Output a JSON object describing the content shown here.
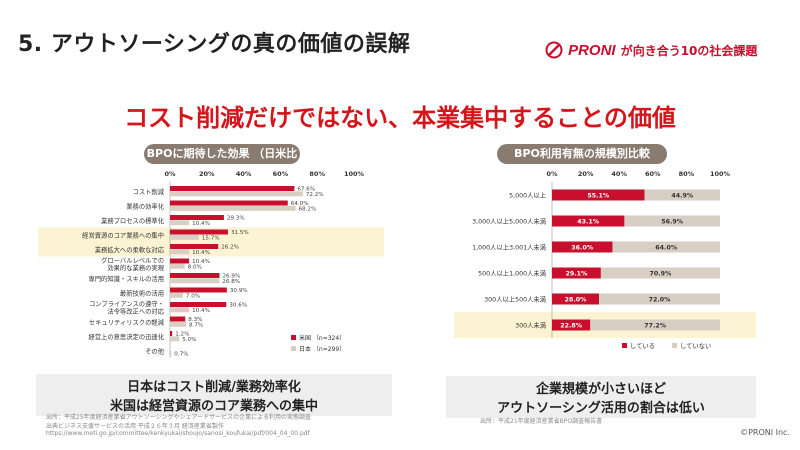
{
  "header": {
    "title": "5. アウトソーシングの真の価値の誤解",
    "brand_name": "PRONI",
    "brand_tagline": "が向き合う10の社会課題"
  },
  "headline": "コスト削減だけではない、本業集中することの価値",
  "left_panel": {
    "title": "BPOに期待した効果 （日米比較）",
    "note_line1": "日本はコスト削減/業務効率化",
    "note_line2": "米国は経営資源のコア業務への集中",
    "source_line1": "出所：平成25年度経済産業省アウトソーシングやシェアードサービスの企業による利用の実態調査",
    "source_line2": "出典ビジネス支援サービスの活用 平成２６年３月 経済産業省製作",
    "source_url": "https://www.meti.go.jp/committee/kenkyukai/shoujo/sanosi_koufukai/pdf/004_04_00.pdf"
  },
  "right_panel": {
    "title": "BPO利用有無の規模別比較",
    "note_line1": "企業規模が小さいほど",
    "note_line2": "アウトソーシング活用の割合は低い",
    "source": "出所：平成21年度経済産業省BPO調査報告書"
  },
  "footer": {
    "copyright": "©PRONI Inc."
  },
  "colors": {
    "accent": "#d4151b",
    "us": "#c8102e",
    "japan": "#d9cec4",
    "pill": "#8a7b70",
    "highlight": "#fbf3d2"
  },
  "chart_data": [
    {
      "type": "bar",
      "orientation": "horizontal",
      "title": "BPOに期待した効果 （日米比較）",
      "xlim": [
        0,
        100
      ],
      "x_ticks": [
        "0%",
        "20%",
        "40%",
        "60%",
        "80%",
        "100%"
      ],
      "categories": [
        "コスト削減",
        "業務の効率化",
        "業務プロセスの標準化",
        "経営資源のコア業務への集中",
        "業務拡大への柔軟な対応",
        "グローバルレベルでの効果的な業務の実現",
        "専門的知識・スキルの活用",
        "最新技術の活用",
        "コンプライアンスの遵守・法令等改正への対応",
        "セキュリティリスクの軽減",
        "経営上の意思決定の迅速化",
        "その他"
      ],
      "category_lines": [
        [
          "コスト削減"
        ],
        [
          "業務の効率化"
        ],
        [
          "業務プロセスの標準化"
        ],
        [
          "経営資源のコア業務への集中"
        ],
        [
          "業務拡大への柔軟な対応"
        ],
        [
          "グローバルレベルでの",
          "効果的な業務の実現"
        ],
        [
          "専門的知識・スキルの活用"
        ],
        [
          "最新技術の活用"
        ],
        [
          "コンプライアンスの遵守・",
          "法令等改正への対応"
        ],
        [
          "セキュリティリスクの軽減"
        ],
        [
          "経営上の意思決定の迅速化"
        ],
        [
          "その他"
        ]
      ],
      "highlighted": [
        3,
        4
      ],
      "series": [
        {
          "name": "米国 （n=324）",
          "color": "#c8102e",
          "values": [
            67.6,
            64.0,
            29.3,
            31.5,
            26.2,
            10.4,
            26.9,
            30.9,
            30.6,
            8.3,
            1.2,
            null
          ],
          "labels": [
            "67.6%",
            "64.0%",
            "29.3%",
            "31.5%",
            "26.2%",
            "10.4%",
            "26.9%",
            "30.9%",
            "30.6%",
            "8.3%",
            "1.2%",
            ""
          ]
        },
        {
          "name": "日本 （n=299）",
          "color": "#d9cec4",
          "values": [
            72.2,
            68.2,
            10.4,
            15.7,
            10.4,
            8.0,
            26.8,
            7.0,
            10.4,
            8.7,
            5.0,
            0.7
          ],
          "labels": [
            "72.2%",
            "68.2%",
            "10.4%",
            "15.7%",
            "10.4%",
            "8.0%",
            "26.8%",
            "7.0%",
            "10.4%",
            "8.7%",
            "5.0%",
            "0.7%"
          ]
        }
      ],
      "legend_position": "bottom-right"
    },
    {
      "type": "bar",
      "orientation": "horizontal",
      "stacked": "100%",
      "title": "BPO利用有無の規模別比較",
      "xlim": [
        0,
        100
      ],
      "x_ticks": [
        "0%",
        "20%",
        "40%",
        "60%",
        "80%",
        "100%"
      ],
      "categories": [
        "5,000人以上",
        "3,000人以上5,000人未満",
        "1,000人以上3,001人未満",
        "500人以上1,000人未満",
        "300人以上500人未満",
        "300人未満"
      ],
      "highlighted": [
        5
      ],
      "series": [
        {
          "name": "している",
          "color": "#c8102e",
          "values": [
            55.1,
            43.1,
            36.0,
            29.1,
            28.0,
            22.8
          ],
          "labels": [
            "55.1%",
            "43.1%",
            "36.0%",
            "29.1%",
            "28.0%",
            "22.8%"
          ]
        },
        {
          "name": "していない",
          "color": "#d9cec4",
          "values": [
            44.9,
            56.9,
            64.0,
            70.9,
            72.0,
            77.2
          ],
          "labels": [
            "44.9%",
            "56.9%",
            "64.0%",
            "70.9%",
            "72.0%",
            "77.2%"
          ]
        }
      ],
      "legend_position": "bottom-center"
    }
  ]
}
